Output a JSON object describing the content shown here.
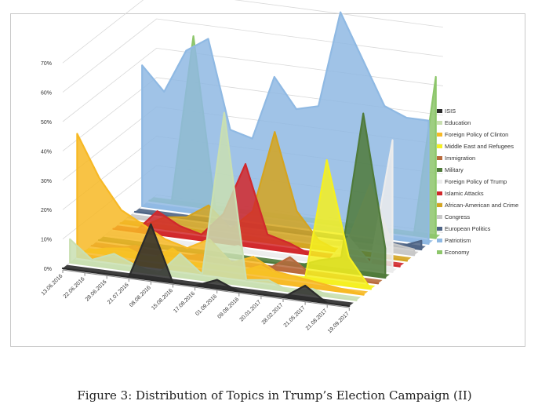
{
  "caption": "Figure 3: Distribution of Topics in Trump’s Election Campaign (II)",
  "chart_data": {
    "type": "area-3d",
    "title": "",
    "xlabel": "",
    "ylabel": "",
    "ylim": [
      0,
      70
    ],
    "y_ticks": [
      "0%",
      "10%",
      "20%",
      "30%",
      "40%",
      "50%",
      "60%",
      "70%"
    ],
    "categories": [
      "13.06.2016",
      "22.06.2016",
      "28.06.2016",
      "21.07.2016",
      "08.08.2016",
      "15.08.2016",
      "17.08.2016",
      "01.09.2016",
      "09.09.2016",
      "20.01.2017",
      "28.02.2017",
      "21.05.2017",
      "21.08.2017",
      "19.09.2017"
    ],
    "legend_position": "right",
    "grid": true,
    "series": [
      {
        "name": "ISIS",
        "color": "#2b2b2b",
        "values": [
          0,
          0,
          0,
          0,
          19,
          0,
          0,
          3,
          0,
          0,
          0,
          5,
          0,
          0
        ]
      },
      {
        "name": "Education",
        "color": "#c9dfb1",
        "values": [
          8,
          2,
          5,
          2,
          0,
          8,
          2,
          58,
          2,
          3,
          0,
          2,
          0,
          0
        ]
      },
      {
        "name": "Foreign Policy of Clinton",
        "color": "#f7b924",
        "values": [
          42,
          28,
          18,
          14,
          10,
          8,
          12,
          5,
          8,
          4,
          3,
          2,
          1,
          0
        ]
      },
      {
        "name": "Middle East and Refugees",
        "color": "#f5f020",
        "values": [
          0,
          2,
          3,
          0,
          5,
          0,
          0,
          0,
          3,
          0,
          0,
          42,
          10,
          0
        ]
      },
      {
        "name": "Immigration",
        "color": "#b86a3c",
        "values": [
          0,
          0,
          2,
          0,
          0,
          2,
          0,
          0,
          0,
          5,
          0,
          0,
          0,
          0
        ]
      },
      {
        "name": "Military",
        "color": "#4f7a3a",
        "values": [
          0,
          0,
          0,
          0,
          0,
          0,
          0,
          0,
          0,
          0,
          3,
          5,
          55,
          10
        ]
      },
      {
        "name": "Foreign Policy of Trump",
        "color": "#ececec",
        "values": [
          0,
          0,
          0,
          0,
          0,
          0,
          2,
          0,
          0,
          0,
          0,
          10,
          2,
          45
        ]
      },
      {
        "name": "Islamic Attacks",
        "color": "#d1282c",
        "values": [
          0,
          0,
          8,
          4,
          2,
          10,
          28,
          5,
          3,
          0,
          0,
          0,
          0,
          0
        ]
      },
      {
        "name": "African-American and Crime",
        "color": "#d4a420",
        "values": [
          0,
          0,
          4,
          5,
          10,
          3,
          10,
          38,
          12,
          3,
          0,
          0,
          0,
          0
        ]
      },
      {
        "name": "Congress",
        "color": "#c8c8c8",
        "values": [
          0,
          0,
          0,
          0,
          0,
          0,
          0,
          0,
          0,
          0,
          2,
          22,
          3,
          2
        ]
      },
      {
        "name": "European Politics",
        "color": "#4e6485",
        "values": [
          0,
          0,
          0,
          0,
          0,
          0,
          0,
          0,
          0,
          0,
          0,
          0,
          0,
          3
        ]
      },
      {
        "name": "Patriotism",
        "color": "#8fb9e3",
        "values": [
          48,
          40,
          55,
          60,
          30,
          28,
          50,
          40,
          42,
          75,
          60,
          45,
          42,
          42
        ]
      },
      {
        "name": "Economy",
        "color": "#8dc66b",
        "values": [
          0,
          0,
          58,
          0,
          0,
          0,
          0,
          0,
          0,
          0,
          0,
          0,
          0,
          55
        ]
      }
    ]
  }
}
